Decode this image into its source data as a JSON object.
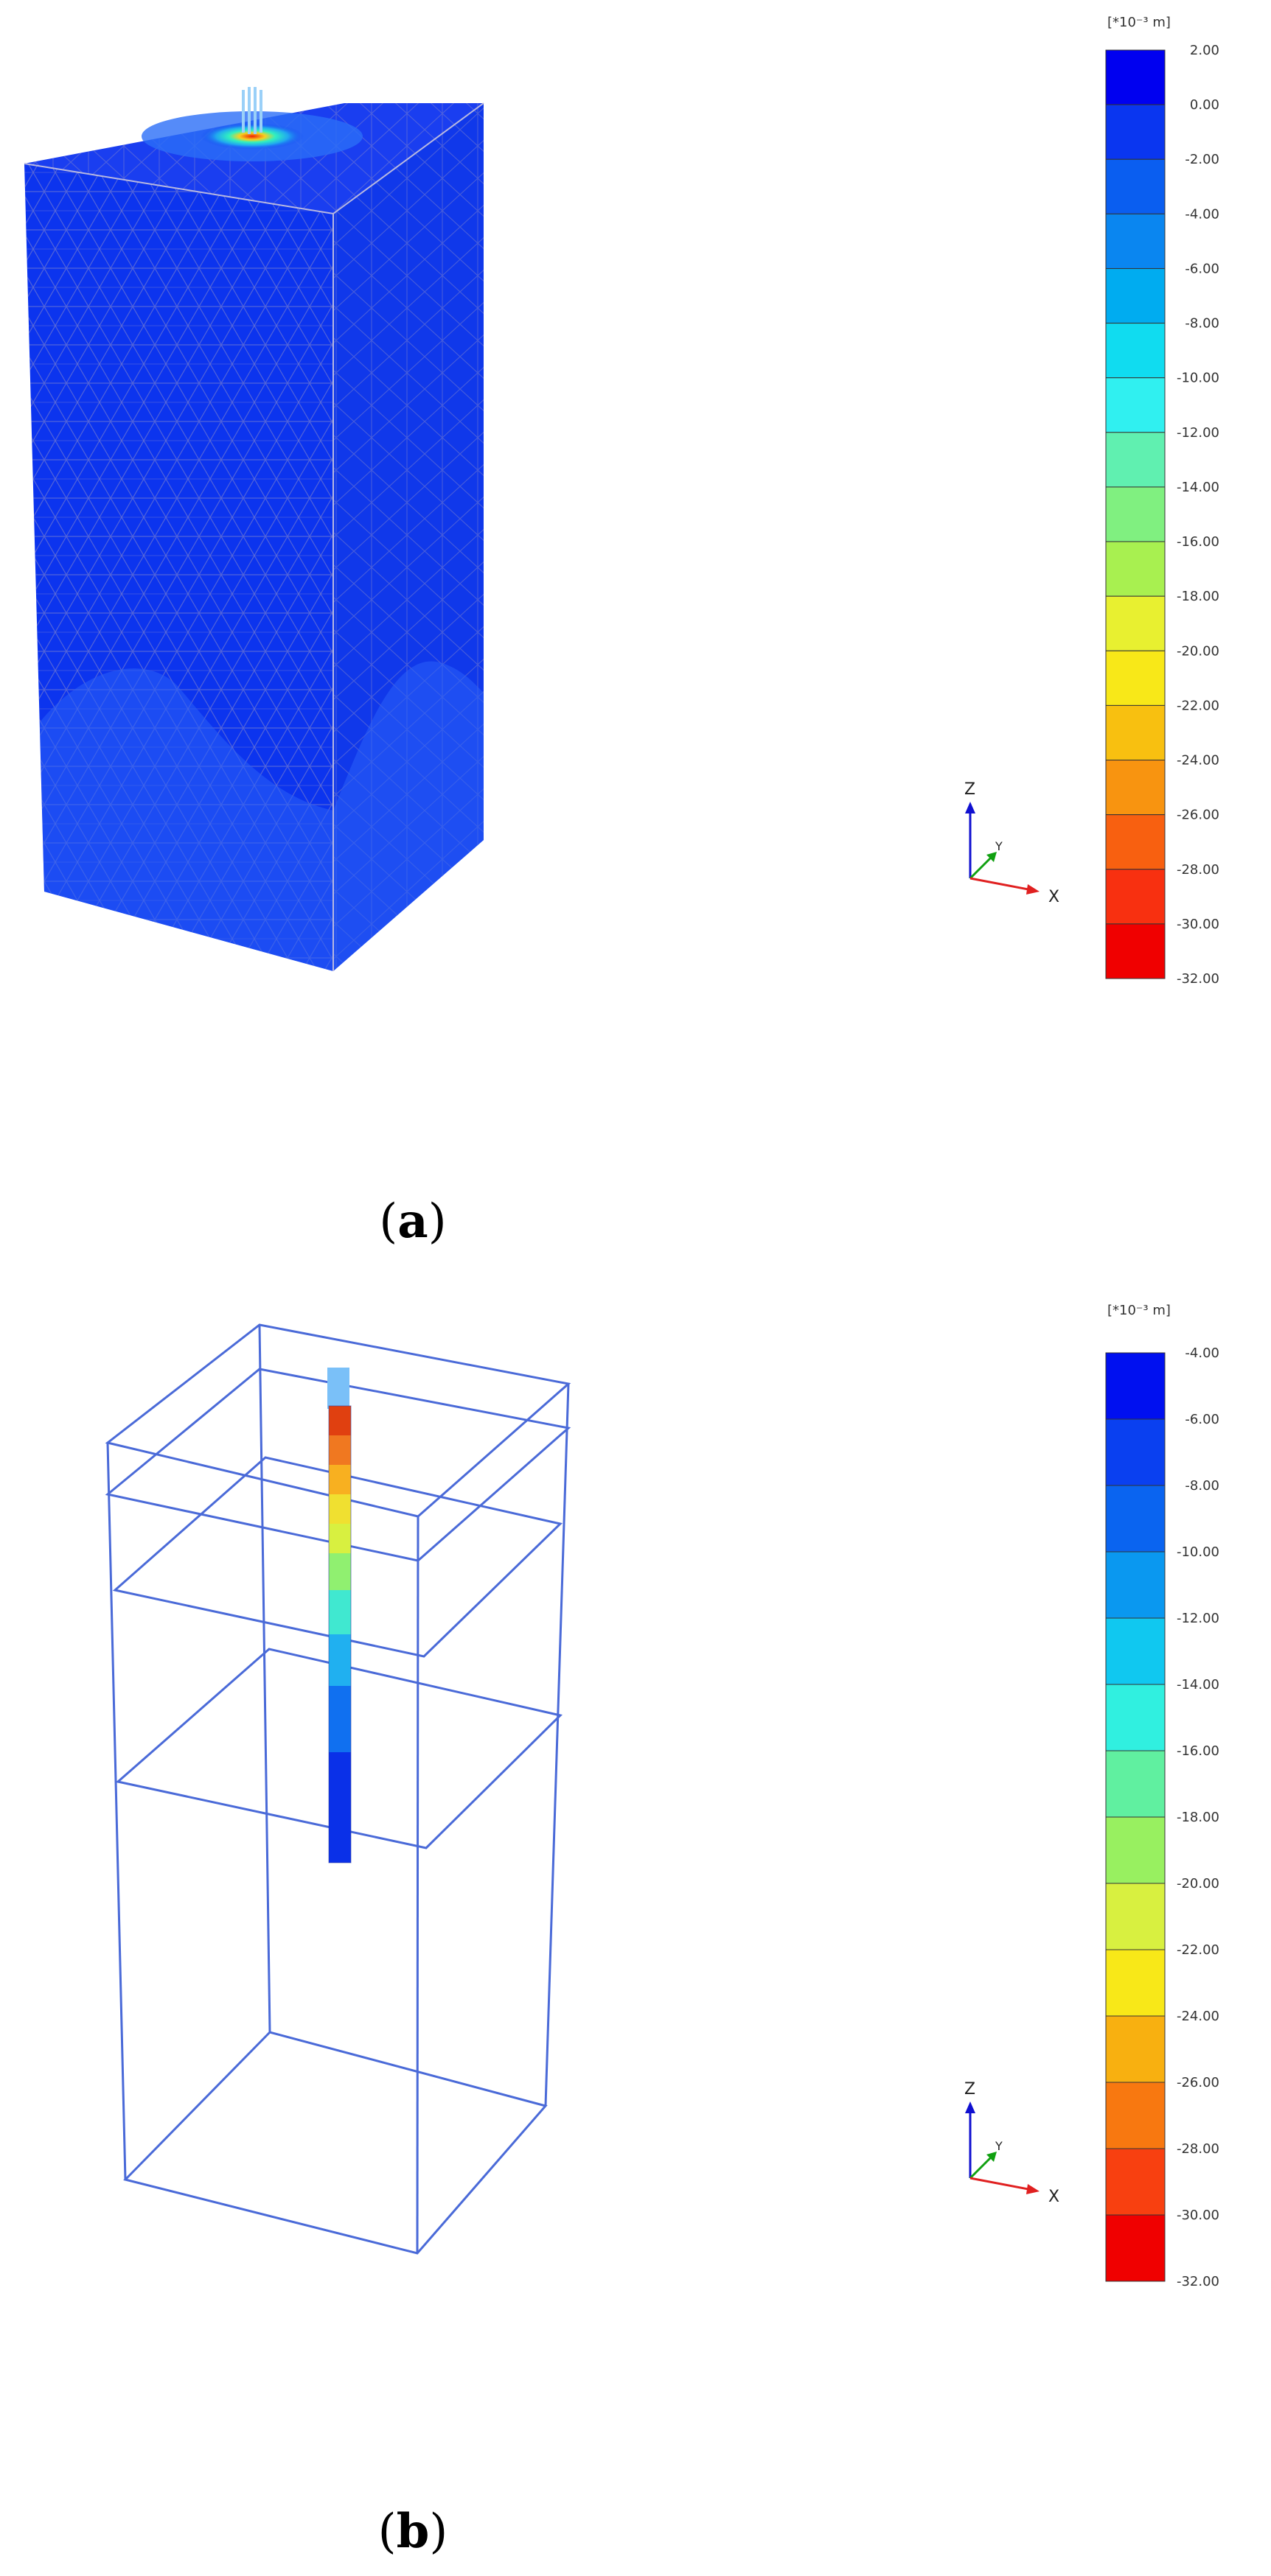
{
  "panel_a": {
    "caption_letter": "a",
    "legend": {
      "unit": "[*10⁻³ m]",
      "ticks": [
        "2.00",
        "0.00",
        "-2.00",
        "-4.00",
        "-6.00",
        "-8.00",
        "-10.00",
        "-12.00",
        "-14.00",
        "-16.00",
        "-18.00",
        "-20.00",
        "-22.00",
        "-24.00",
        "-26.00",
        "-28.00",
        "-30.00",
        "-32.00"
      ],
      "colors": [
        "#0000f0",
        "#0a36f0",
        "#0a5ef0",
        "#0a86f0",
        "#00acf0",
        "#10dcf0",
        "#30f0f0",
        "#60f0b0",
        "#80f080",
        "#a8f050",
        "#e8f030",
        "#f8e818",
        "#f8c010",
        "#f89410",
        "#f86010",
        "#f83010",
        "#f00000"
      ]
    },
    "axes": {
      "z": "Z",
      "y": "Y",
      "x": "X"
    }
  },
  "panel_b": {
    "caption_letter": "b",
    "legend": {
      "unit": "[*10⁻³ m]",
      "ticks": [
        "-4.00",
        "-6.00",
        "-8.00",
        "-10.00",
        "-12.00",
        "-14.00",
        "-16.00",
        "-18.00",
        "-20.00",
        "-22.00",
        "-24.00",
        "-26.00",
        "-28.00",
        "-30.00",
        "-32.00"
      ],
      "colors": [
        "#0010f0",
        "#0a40f0",
        "#0a64f0",
        "#0a98f0",
        "#10c8f0",
        "#30f0e0",
        "#60f0a0",
        "#98f060",
        "#d8f040",
        "#f8e818",
        "#f8b010",
        "#f87810",
        "#f84010",
        "#f00000"
      ]
    },
    "axes": {
      "z": "Z",
      "y": "Y",
      "x": "X"
    }
  }
}
